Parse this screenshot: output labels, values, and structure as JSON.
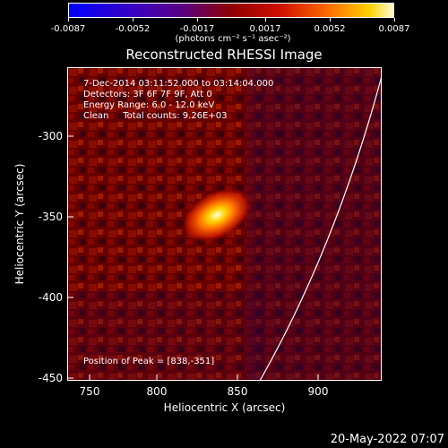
{
  "colorbar": {
    "ticks": [
      "-0.0087",
      "-0.0052",
      "-0.0017",
      "0.0017",
      "0.0052",
      "0.0087"
    ],
    "units_label": "(photons cm⁻² s⁻¹ asec⁻²)"
  },
  "title": "Reconstructed RHESSI Image",
  "info": {
    "time": "7-Dec-2014 03:11:52.000 to 03:14:04.000",
    "detectors": "Detectors: 3F 6F 7F 9F, Att 0",
    "energy": "Energy Range: 6.0 - 12.0 keV",
    "method": "Clean     Total counts: 9.26E+03",
    "peak": "Position of Peak = [838,-351]"
  },
  "axes": {
    "xlabel": "Heliocentric X (arcsec)",
    "ylabel": "Heliocentric Y (arcsec)",
    "xticks": [
      "750",
      "800",
      "850",
      "900"
    ],
    "yticks": [
      "-300",
      "-350",
      "-400",
      "-450"
    ]
  },
  "datestamp": "20-May-2022 07:07",
  "colors": {
    "limb": "#ffffff",
    "axes": "#ffffff",
    "background": "#000000"
  }
}
